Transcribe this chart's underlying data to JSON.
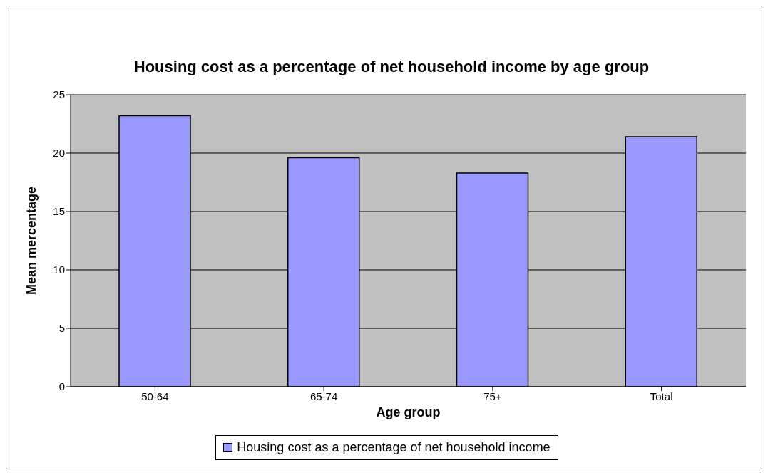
{
  "chart_data": {
    "type": "bar",
    "title": "Housing cost as a percentage of net household income by age group",
    "xlabel": "Age group",
    "ylabel": "Mean mercentage",
    "categories": [
      "50-64",
      "65-74",
      "75+",
      "Total"
    ],
    "series": [
      {
        "name": "Housing cost as a percentage of net household income",
        "color": "#9999ff",
        "values": [
          23.2,
          19.6,
          18.3,
          21.4
        ]
      }
    ],
    "ylim": [
      0,
      25
    ],
    "yticks": [
      0,
      5,
      10,
      15,
      20,
      25
    ],
    "grid": "y",
    "legend": "bottom"
  }
}
